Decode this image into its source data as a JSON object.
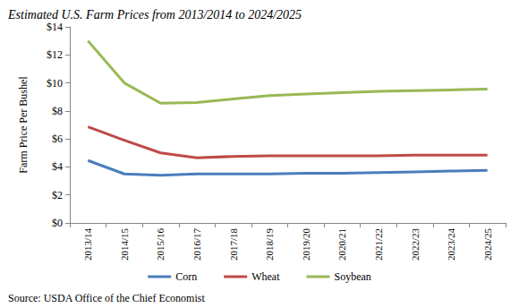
{
  "chart_data": {
    "type": "line",
    "title": "Estimated U.S. Farm Prices from 2013/2014 to 2024/2025",
    "y_label": "Farm Price Per Bushel",
    "source": "Source: USDA Office of the Chief Economist",
    "categories": [
      "2013/14",
      "2014/15",
      "2015/16",
      "2016/17",
      "2017/18",
      "2018/19",
      "2019/20",
      "2020/21",
      "2021/22",
      "2022/23",
      "2023/24",
      "2024/25"
    ],
    "series": [
      {
        "name": "Corn",
        "color": "#4a7ebb",
        "values": [
          4.46,
          3.5,
          3.4,
          3.5,
          3.5,
          3.5,
          3.55,
          3.55,
          3.6,
          3.65,
          3.7,
          3.75
        ]
      },
      {
        "name": "Wheat",
        "color": "#be4b48",
        "values": [
          6.87,
          5.9,
          5.0,
          4.65,
          4.75,
          4.8,
          4.8,
          4.8,
          4.8,
          4.85,
          4.85,
          4.85
        ]
      },
      {
        "name": "Soybean",
        "color": "#98b954",
        "values": [
          13.0,
          10.0,
          8.55,
          8.6,
          8.85,
          9.1,
          9.2,
          9.3,
          9.4,
          9.45,
          9.5,
          9.55
        ]
      }
    ],
    "ylim": [
      0,
      14
    ],
    "yticks": [
      {
        "value": 0,
        "label": "$0"
      },
      {
        "value": 2,
        "label": "$2"
      },
      {
        "value": 4,
        "label": "$4"
      },
      {
        "value": 6,
        "label": "$6"
      },
      {
        "value": 8,
        "label": "$8"
      },
      {
        "value": 10,
        "label": "$10"
      },
      {
        "value": 12,
        "label": "$12"
      },
      {
        "value": 14,
        "label": "$14"
      }
    ],
    "grid": false,
    "legend": "bottom"
  }
}
